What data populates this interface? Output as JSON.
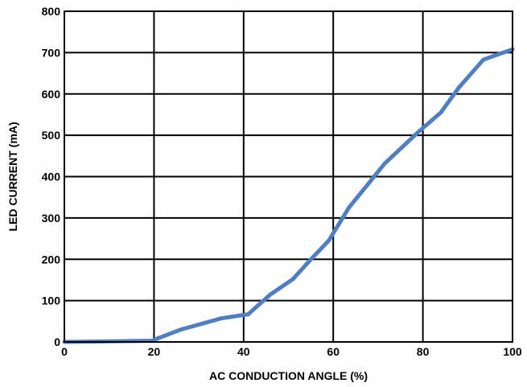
{
  "chart_data": {
    "type": "line",
    "title": "",
    "xlabel": "AC CONDUCTION ANGLE (%)",
    "ylabel": "LED CURRENT (mA)",
    "xlim": [
      0,
      100
    ],
    "ylim": [
      0,
      800
    ],
    "xticks": [
      0,
      20,
      40,
      60,
      80,
      100
    ],
    "yticks": [
      0,
      100,
      200,
      300,
      400,
      500,
      600,
      700,
      800
    ],
    "grid": true,
    "legend": "none",
    "series": [
      {
        "color": "#4f7fc0",
        "x": [
          0,
          19.5,
          26,
          35,
          41,
          46,
          51,
          55,
          59,
          63.5,
          71.5,
          79,
          84,
          88,
          93.5,
          100
        ],
        "y": [
          0,
          3,
          30,
          57,
          67,
          115,
          152,
          200,
          245,
          325,
          432,
          508,
          555,
          615,
          683,
          708
        ]
      }
    ]
  }
}
